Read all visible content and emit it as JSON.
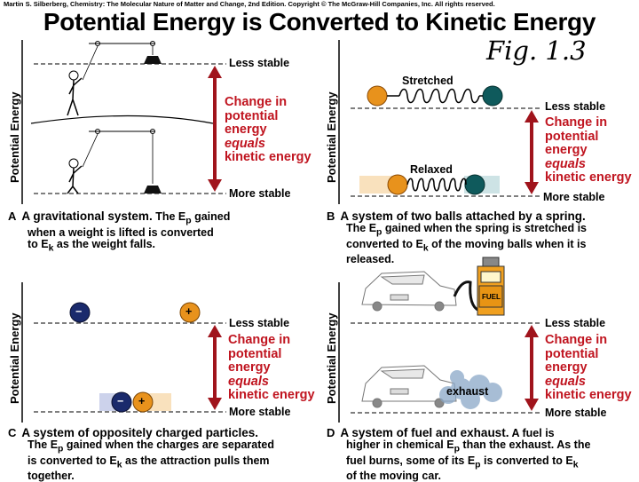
{
  "credit": "Martin S. Silberberg, Chemistry: The Molecular Nature of Matter and Change, 2nd Edition. Copyright © The McGraw-Hill Companies, Inc. All rights reserved.",
  "title": "Potential Energy is Converted to Kinetic Energy",
  "figure_label": "Fig. 1.3",
  "common": {
    "y_axis_label": "Potential Energy",
    "less_stable": "Less stable",
    "more_stable": "More stable",
    "change_lines": [
      "Change in",
      "potential",
      "energy",
      "equals",
      "kinetic energy"
    ]
  },
  "colors": {
    "arrow": "#a0141c",
    "change_text": "#c0141f",
    "orange_ball": "#e8921c",
    "teal_ball": "#0f5a5c",
    "negative": "#1a2a6c",
    "positive": "#e8921c"
  },
  "panels": {
    "a": {
      "letter": "A",
      "heading": "A gravitational system.",
      "line1_rest": "The E",
      "line1_sub": "p",
      "line1_end": " gained",
      "line2": "when a weight is lifted is converted",
      "line3_pre": "to E",
      "line3_sub": "k",
      "line3_end": " as the weight falls."
    },
    "b": {
      "letter": "B",
      "heading": "A system of two balls attached by a spring.",
      "stretched": "Stretched",
      "relaxed": "Relaxed",
      "line1_pre": "The E",
      "line1_sub": "p",
      "line1_end": " gained when the spring is stretched is",
      "line2_pre": "converted to E",
      "line2_sub": "k",
      "line2_end": " of the moving balls when it is",
      "line3": "released."
    },
    "c": {
      "letter": "C",
      "heading": "A system of oppositely charged particles.",
      "neg_symbol": "−",
      "pos_symbol": "+",
      "line1_pre": "The E",
      "line1_sub": "p",
      "line1_end": " gained when the charges are separated",
      "line2_pre": "is converted to E",
      "line2_sub": "k",
      "line2_end": " as the attraction pulls them",
      "line3": "together."
    },
    "d": {
      "letter": "D",
      "heading": "A system of fuel and exhaust.",
      "heading_rest": " A fuel is",
      "exhaust": "exhaust",
      "pump_label": "FUEL",
      "line1_pre": "higher in chemical E",
      "line1_sub": "p",
      "line1_end": " than the exhaust. As the",
      "line2_pre": "fuel burns, some of its E",
      "line2_sub": "p",
      "line2_end": " is converted to E",
      "line2_sub2": "k",
      "line3": "of the moving car."
    }
  }
}
